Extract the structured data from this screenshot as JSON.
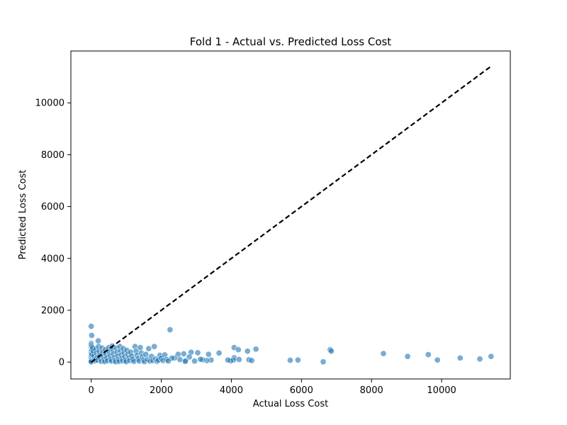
{
  "chart_data": {
    "type": "scatter",
    "title": "Fold 1 - Actual vs. Predicted Loss Cost",
    "xlabel": "Actual Loss Cost",
    "ylabel": "Predicted Loss Cost",
    "xlim": [
      -580,
      11960
    ],
    "ylim": [
      -650,
      12000
    ],
    "xticks": [
      0,
      2000,
      4000,
      6000,
      8000,
      10000
    ],
    "yticks": [
      0,
      2000,
      4000,
      6000,
      8000,
      10000
    ],
    "grid": false,
    "point_color": "#1f77b4",
    "reference_line": {
      "style": "dashed",
      "color": "#000000",
      "from": [
        0,
        0
      ],
      "to": [
        11400,
        11400
      ]
    },
    "points": [
      [
        0,
        1380
      ],
      [
        15,
        1030
      ],
      [
        200,
        820
      ],
      [
        2250,
        1250
      ],
      [
        6820,
        480
      ],
      [
        6850,
        420
      ],
      [
        4700,
        500
      ],
      [
        4080,
        560
      ],
      [
        4200,
        480
      ],
      [
        4460,
        420
      ],
      [
        3650,
        350
      ],
      [
        3350,
        300
      ],
      [
        3040,
        360
      ],
      [
        2850,
        380
      ],
      [
        2640,
        320
      ],
      [
        2480,
        300
      ],
      [
        4500,
        90
      ],
      [
        4580,
        60
      ],
      [
        4080,
        170
      ],
      [
        4060,
        80
      ],
      [
        4220,
        100
      ],
      [
        3980,
        50
      ],
      [
        3900,
        80
      ],
      [
        3420,
        80
      ],
      [
        3300,
        60
      ],
      [
        3180,
        90
      ],
      [
        3120,
        110
      ],
      [
        2950,
        40
      ],
      [
        2800,
        200
      ],
      [
        2700,
        60
      ],
      [
        2680,
        30
      ],
      [
        2530,
        100
      ],
      [
        2380,
        160
      ],
      [
        2300,
        150
      ],
      [
        5680,
        70
      ],
      [
        5900,
        80
      ],
      [
        6620,
        10
      ],
      [
        8340,
        330
      ],
      [
        9030,
        220
      ],
      [
        9620,
        290
      ],
      [
        9880,
        80
      ],
      [
        10530,
        160
      ],
      [
        11090,
        120
      ],
      [
        11410,
        220
      ],
      [
        0,
        720
      ],
      [
        0,
        660
      ],
      [
        0,
        580
      ],
      [
        0,
        520
      ],
      [
        0,
        450
      ],
      [
        0,
        380
      ],
      [
        0,
        320
      ],
      [
        0,
        260
      ],
      [
        0,
        200
      ],
      [
        0,
        140
      ],
      [
        0,
        90
      ],
      [
        0,
        40
      ],
      [
        0,
        10
      ],
      [
        10,
        600
      ],
      [
        20,
        480
      ],
      [
        25,
        300
      ],
      [
        40,
        550
      ],
      [
        60,
        420
      ],
      [
        80,
        230
      ],
      [
        90,
        100
      ],
      [
        110,
        50
      ],
      [
        130,
        500
      ],
      [
        150,
        350
      ],
      [
        170,
        180
      ],
      [
        190,
        70
      ],
      [
        210,
        600
      ],
      [
        230,
        420
      ],
      [
        250,
        260
      ],
      [
        270,
        120
      ],
      [
        290,
        30
      ],
      [
        310,
        540
      ],
      [
        330,
        380
      ],
      [
        350,
        220
      ],
      [
        370,
        90
      ],
      [
        390,
        20
      ],
      [
        410,
        480
      ],
      [
        430,
        300
      ],
      [
        450,
        160
      ],
      [
        470,
        60
      ],
      [
        500,
        560
      ],
      [
        520,
        400
      ],
      [
        540,
        240
      ],
      [
        560,
        110
      ],
      [
        580,
        40
      ],
      [
        600,
        620
      ],
      [
        620,
        480
      ],
      [
        640,
        320
      ],
      [
        660,
        170
      ],
      [
        680,
        70
      ],
      [
        700,
        10
      ],
      [
        720,
        540
      ],
      [
        740,
        380
      ],
      [
        760,
        230
      ],
      [
        780,
        100
      ],
      [
        800,
        30
      ],
      [
        820,
        600
      ],
      [
        840,
        440
      ],
      [
        860,
        280
      ],
      [
        880,
        140
      ],
      [
        900,
        50
      ],
      [
        920,
        520
      ],
      [
        940,
        360
      ],
      [
        960,
        200
      ],
      [
        980,
        80
      ],
      [
        1000,
        20
      ],
      [
        1020,
        450
      ],
      [
        1050,
        300
      ],
      [
        1080,
        160
      ],
      [
        1100,
        60
      ],
      [
        1130,
        380
      ],
      [
        1160,
        230
      ],
      [
        1190,
        110
      ],
      [
        1220,
        30
      ],
      [
        1250,
        600
      ],
      [
        1280,
        420
      ],
      [
        1310,
        260
      ],
      [
        1340,
        120
      ],
      [
        1370,
        40
      ],
      [
        1400,
        560
      ],
      [
        1430,
        350
      ],
      [
        1460,
        200
      ],
      [
        1490,
        80
      ],
      [
        1520,
        20
      ],
      [
        1560,
        300
      ],
      [
        1600,
        100
      ],
      [
        1640,
        520
      ],
      [
        1680,
        40
      ],
      [
        1720,
        220
      ],
      [
        1760,
        60
      ],
      [
        1800,
        600
      ],
      [
        1840,
        120
      ],
      [
        1880,
        30
      ],
      [
        1920,
        80
      ],
      [
        1960,
        260
      ],
      [
        2000,
        150
      ],
      [
        2050,
        60
      ],
      [
        2100,
        280
      ],
      [
        2150,
        100
      ],
      [
        2200,
        40
      ]
    ]
  }
}
